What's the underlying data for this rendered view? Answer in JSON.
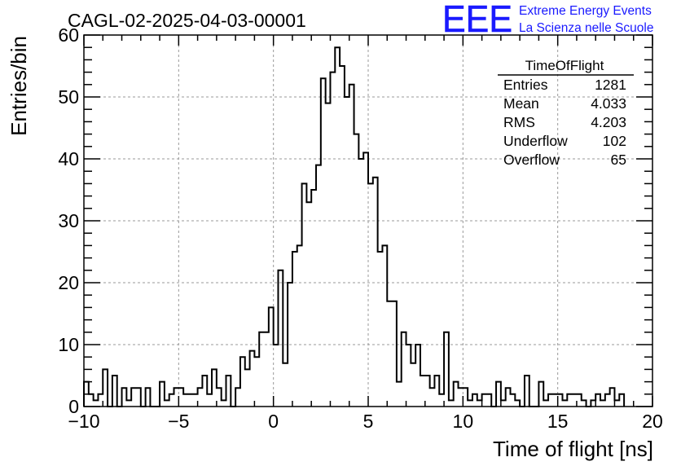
{
  "chart_data": {
    "type": "histogram",
    "title": "CAGL-02-2025-04-03-00001",
    "xlabel": "Time of flight [ns]",
    "ylabel": "Entries/bin",
    "xlim": [
      -10,
      20
    ],
    "ylim": [
      0,
      60
    ],
    "xticks": [
      -10,
      -5,
      0,
      5,
      10,
      15,
      20
    ],
    "yticks": [
      0,
      10,
      20,
      30,
      40,
      50,
      60
    ],
    "grid": true,
    "bin_edges_start": -10,
    "bin_width": 0.25,
    "values": [
      4,
      2,
      1,
      2,
      6,
      0,
      5,
      0,
      3,
      1,
      3,
      3,
      0,
      3,
      0,
      0,
      4,
      1,
      2,
      3,
      3,
      2,
      2,
      2,
      3,
      5,
      2,
      6,
      3,
      1,
      5,
      0,
      3,
      8,
      6,
      9,
      8,
      12,
      12,
      16,
      10,
      22,
      7,
      20,
      25,
      26,
      36,
      33,
      35,
      39,
      53,
      49,
      54,
      58,
      55,
      50,
      52,
      44,
      40,
      41,
      36,
      37,
      25,
      26,
      17,
      17,
      4,
      12,
      10,
      7,
      10,
      5,
      5,
      3,
      5,
      2,
      12,
      1,
      4,
      3,
      3,
      1,
      2,
      1,
      2,
      2,
      0,
      4,
      1,
      3,
      2,
      1,
      0,
      5,
      0,
      0,
      4,
      1,
      2,
      2,
      2,
      1,
      2,
      2,
      2,
      1,
      0,
      1,
      2,
      1,
      2,
      3,
      1,
      2
    ]
  },
  "stats_box": {
    "name": "TimeOfFlight",
    "rows": [
      {
        "label": "Entries",
        "value": "1281"
      },
      {
        "label": "Mean",
        "value": "4.033"
      },
      {
        "label": "RMS",
        "value": "4.203"
      },
      {
        "label": "Underflow",
        "value": "102"
      },
      {
        "label": "Overflow",
        "value": "65"
      }
    ]
  },
  "logo": {
    "mark": "EEE",
    "line1": "Extreme Energy Events",
    "line2": "La Scienza nelle Scuole",
    "color": "#1a1aff"
  }
}
